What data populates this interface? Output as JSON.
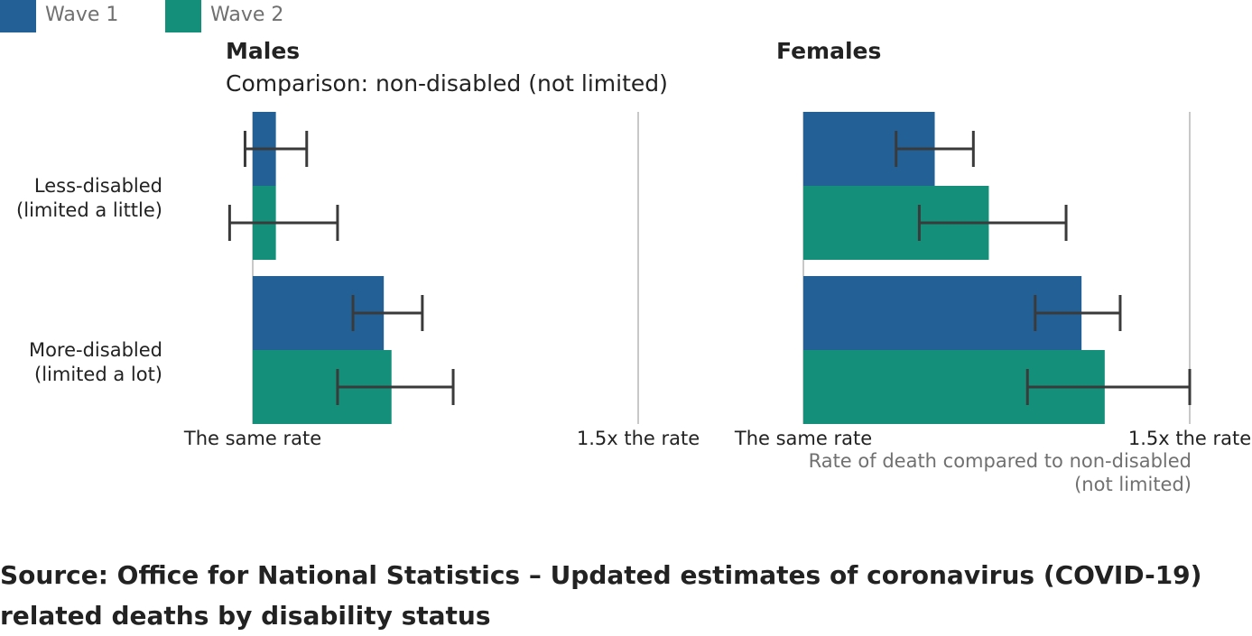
{
  "colors": {
    "wave1": "#236096",
    "wave2": "#148f7a",
    "gridline": "#c8c8c8",
    "errorbar": "#3a3a3a"
  },
  "legend": [
    {
      "label": "Wave 1",
      "color": "#236096"
    },
    {
      "label": "Wave 2",
      "color": "#148f7a"
    }
  ],
  "source": "Source: Office for National Statistics – Updated estimates of coronavirus (COVID-19) related deaths by disability status",
  "chart_data": [
    {
      "type": "bar",
      "orientation": "horizontal",
      "title": "Males",
      "subtitle": "Comparison: non-disabled (not limited)",
      "categories": [
        "Less-disabled\n(limited a little)",
        "More-disabled\n(limited a lot)"
      ],
      "tick_labels": [
        "The same rate",
        "1.5x the rate"
      ],
      "xlim": [
        1.0,
        1.5
      ],
      "grid": true,
      "series": [
        {
          "name": "Wave 1",
          "values": [
            1.03,
            1.17
          ],
          "ci_low": [
            0.99,
            1.13
          ],
          "ci_high": [
            1.07,
            1.22
          ]
        },
        {
          "name": "Wave 2",
          "values": [
            1.03,
            1.18
          ],
          "ci_low": [
            0.97,
            1.11
          ],
          "ci_high": [
            1.11,
            1.26
          ]
        }
      ]
    },
    {
      "type": "bar",
      "orientation": "horizontal",
      "title": "Females",
      "categories": [
        "Less-disabled\n(limited a little)",
        "More-disabled\n(limited a lot)"
      ],
      "tick_labels": [
        "The same rate",
        "1.5x the rate"
      ],
      "xlabel": "Rate of death compared to non-disabled\n(not limited)",
      "xlim": [
        1.0,
        1.5
      ],
      "grid": true,
      "series": [
        {
          "name": "Wave 1",
          "values": [
            1.17,
            1.36
          ],
          "ci_low": [
            1.12,
            1.3
          ],
          "ci_high": [
            1.22,
            1.41
          ]
        },
        {
          "name": "Wave 2",
          "values": [
            1.24,
            1.39
          ],
          "ci_low": [
            1.15,
            1.29
          ],
          "ci_high": [
            1.34,
            1.5
          ]
        }
      ]
    }
  ]
}
